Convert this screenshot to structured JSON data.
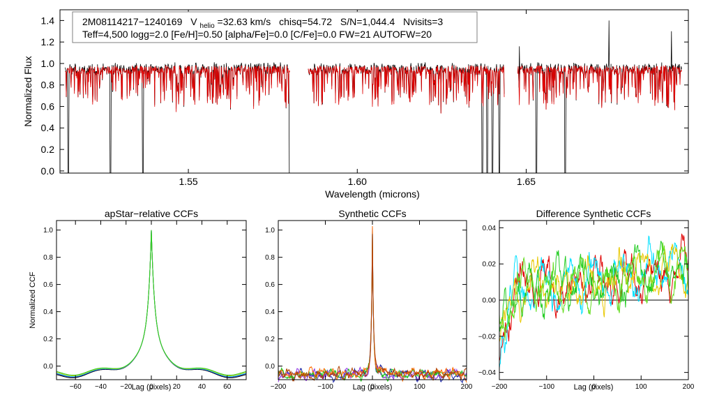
{
  "chart_data": [
    {
      "type": "line",
      "title": "",
      "xlabel": "Wavelength (microns)",
      "ylabel": "Normalized Flux",
      "xlim": [
        1.512,
        1.698
      ],
      "ylim": [
        -0.02,
        1.5
      ],
      "x_ticks": [
        1.55,
        1.6,
        1.65
      ],
      "x_tick_labels": [
        "1.55",
        "1.60",
        "1.65"
      ],
      "y_ticks": [
        0.0,
        0.2,
        0.4,
        0.6,
        0.8,
        1.0,
        1.2,
        1.4
      ],
      "y_tick_labels": [
        "0.0",
        "0.2",
        "0.4",
        "0.6",
        "0.8",
        "1.0",
        "1.2",
        "1.4"
      ],
      "info_line1_parts": {
        "star": "2M08114217−1240169",
        "v_label": "V",
        "v_sub": "helio",
        "v_value": "=32.63 km/s",
        "chisq": "chisq=54.72",
        "sn": "S/N=1,044.4",
        "nvisits": "Nvisits=3"
      },
      "info_line2": "Teff=4,500 logg=2.0 [Fe/H]=0.50 [alpha/Fe]=0.0 [C/Fe]=0.0 FW=21 AUTOFW=20",
      "chips": [
        [
          1.5135,
          1.58
        ],
        [
          1.5855,
          1.6435
        ],
        [
          1.6475,
          1.696
        ]
      ],
      "deep_lines": [
        1.5145,
        1.527,
        1.5365,
        1.58,
        1.637,
        1.6385,
        1.64,
        1.642,
        1.653,
        1.6615
      ],
      "spikes": [
        [
          1.6745,
          1.4
        ],
        [
          1.693,
          1.3
        ],
        [
          1.648,
          1.16
        ]
      ],
      "series": [
        {
          "color": "#000000",
          "values_summary": "observed spectrum, continuum ~0.9-1.0"
        },
        {
          "color": "#e00000",
          "values_summary": "best-fit synthetic spectrum"
        }
      ]
    },
    {
      "type": "line",
      "title": "apStar−relative CCFs",
      "xlabel": "Lag (pixels)",
      "ylabel": "Normalized CCF",
      "xlim": [
        -75,
        75
      ],
      "ylim": [
        -0.1,
        1.07
      ],
      "x_ticks": [
        -60,
        -40,
        -20,
        0,
        20,
        40,
        60
      ],
      "x_tick_labels": [
        "−60",
        "−40",
        "−20",
        "0",
        "20",
        "40",
        "60"
      ],
      "y_ticks": [
        0.0,
        0.2,
        0.4,
        0.6,
        0.8,
        1.0
      ],
      "y_tick_labels": [
        "0.0",
        "0.2",
        "0.4",
        "0.6",
        "0.8",
        "1.0"
      ],
      "peak": {
        "x": 0,
        "y": 1.0
      },
      "series": [
        {
          "color": "#000000"
        },
        {
          "color": "#1e2aa8"
        },
        {
          "color": "#00e0ff"
        },
        {
          "color": "#e8c800"
        },
        {
          "color": "#22cc22"
        }
      ]
    },
    {
      "type": "line",
      "title": "Synthetic CCFs",
      "xlabel": "Lag (pixels)",
      "ylabel": "",
      "xlim": [
        -200,
        200
      ],
      "ylim": [
        -0.1,
        1.07
      ],
      "x_ticks": [
        -200,
        -100,
        0,
        100,
        200
      ],
      "x_tick_labels": [
        "−200",
        "−100",
        "0",
        "100",
        "200"
      ],
      "y_ticks": [
        0.0,
        0.2,
        0.4,
        0.6,
        0.8,
        1.0
      ],
      "y_tick_labels": [
        "0.0",
        "0.2",
        "0.4",
        "0.6",
        "0.8",
        "1.0"
      ],
      "peak": {
        "x": 0,
        "y": 1.0
      },
      "series": [
        {
          "color": "#1e2aa8"
        },
        {
          "color": "#8a2be2"
        },
        {
          "color": "#22cc22"
        },
        {
          "color": "#ff6a00"
        },
        {
          "color": "#b04000"
        }
      ]
    },
    {
      "type": "line",
      "title": "Difference Synthetic CCFs",
      "xlabel": "Lag (pixels)",
      "ylabel": "",
      "xlim": [
        -200,
        200
      ],
      "ylim": [
        -0.044,
        0.044
      ],
      "x_ticks": [
        -200,
        -100,
        0,
        100,
        200
      ],
      "x_tick_labels": [
        "−200",
        "−100",
        "0",
        "100",
        "200"
      ],
      "y_ticks": [
        -0.04,
        -0.02,
        0.0,
        0.02,
        0.04
      ],
      "y_tick_labels": [
        "−0.04",
        "−0.02",
        "0.00",
        "0.02",
        "0.04"
      ],
      "zero_line": true,
      "series": [
        {
          "color": "#e00000"
        },
        {
          "color": "#00e0ff"
        },
        {
          "color": "#e8c800"
        },
        {
          "color": "#22cc22"
        },
        {
          "color": "#66dd22"
        }
      ]
    }
  ]
}
